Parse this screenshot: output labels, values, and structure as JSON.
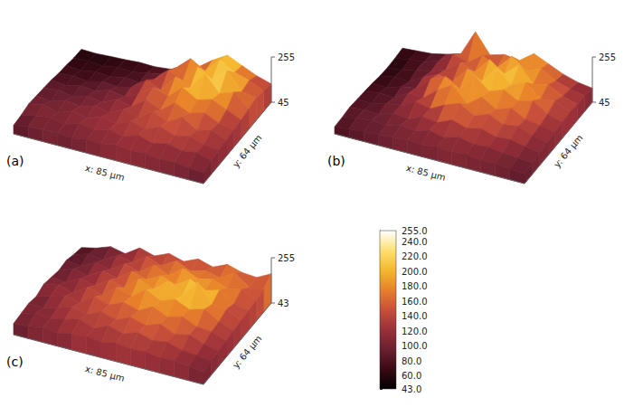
{
  "chart_data": {
    "type": "surface",
    "panels": [
      {
        "label": "(a)",
        "x_label": "x: 85 µm",
        "y_label": "y: 64 µm",
        "zlim": [
          45,
          255
        ],
        "zticks": [
          45,
          255
        ],
        "z": [
          [
            60,
            58,
            62,
            65,
            70,
            68,
            75,
            90,
            120,
            170,
            210,
            180,
            150,
            130
          ],
          [
            62,
            66,
            60,
            72,
            68,
            80,
            95,
            140,
            200,
            160,
            230,
            190,
            170,
            140
          ],
          [
            70,
            64,
            75,
            70,
            85,
            78,
            110,
            170,
            140,
            220,
            180,
            240,
            160,
            150
          ],
          [
            75,
            80,
            72,
            90,
            82,
            100,
            150,
            120,
            200,
            165,
            250,
            175,
            200,
            140
          ],
          [
            85,
            78,
            95,
            88,
            110,
            95,
            130,
            175,
            150,
            210,
            170,
            190,
            160,
            130
          ],
          [
            90,
            100,
            85,
            105,
            95,
            125,
            110,
            160,
            130,
            180,
            150,
            170,
            140,
            125
          ],
          [
            95,
            88,
            110,
            100,
            120,
            105,
            140,
            120,
            165,
            135,
            175,
            130,
            150,
            120
          ],
          [
            100,
            115,
            95,
            120,
            105,
            130,
            115,
            145,
            125,
            155,
            130,
            145,
            125,
            115
          ],
          [
            90,
            105,
            115,
            100,
            125,
            110,
            130,
            115,
            140,
            120,
            135,
            120,
            130,
            110
          ],
          [
            85,
            95,
            100,
            105,
            95,
            110,
            105,
            120,
            110,
            115,
            105,
            110,
            100,
            95
          ]
        ]
      },
      {
        "label": "(b)",
        "x_label": "x: 85 µm",
        "y_label": "y: 64 µm",
        "zlim": [
          45,
          255
        ],
        "zticks": [
          45,
          255
        ],
        "z": [
          [
            65,
            70,
            75,
            90,
            110,
            230,
            140,
            160,
            150,
            200,
            170,
            140,
            120,
            110
          ],
          [
            60,
            72,
            80,
            100,
            150,
            130,
            180,
            140,
            210,
            160,
            190,
            150,
            130,
            115
          ],
          [
            58,
            65,
            85,
            95,
            120,
            170,
            145,
            220,
            170,
            230,
            160,
            175,
            140,
            120
          ],
          [
            62,
            75,
            70,
            110,
            140,
            125,
            200,
            160,
            240,
            180,
            210,
            150,
            160,
            125
          ],
          [
            70,
            68,
            90,
            100,
            160,
            190,
            150,
            230,
            175,
            200,
            165,
            185,
            140,
            120
          ],
          [
            75,
            85,
            80,
            120,
            115,
            170,
            210,
            140,
            190,
            150,
            175,
            140,
            130,
            115
          ],
          [
            80,
            78,
            95,
            105,
            140,
            125,
            160,
            185,
            145,
            170,
            140,
            150,
            125,
            110
          ],
          [
            85,
            90,
            88,
            110,
            100,
            130,
            120,
            150,
            130,
            145,
            125,
            130,
            115,
            105
          ],
          [
            80,
            95,
            100,
            95,
            115,
            105,
            125,
            110,
            130,
            115,
            120,
            110,
            105,
            100
          ],
          [
            78,
            85,
            90,
            95,
            100,
            105,
            100,
            110,
            105,
            110,
            100,
            105,
            95,
            90
          ]
        ]
      },
      {
        "label": "(c)",
        "x_label": "x: 85 µm",
        "y_label": "y: 64 µm",
        "zlim": [
          43,
          255
        ],
        "zticks": [
          43,
          255
        ],
        "z": [
          [
            70,
            85,
            110,
            95,
            140,
            120,
            150,
            130,
            160,
            140,
            170,
            150,
            145,
            180
          ],
          [
            80,
            100,
            90,
            130,
            115,
            160,
            135,
            175,
            145,
            165,
            150,
            190,
            140,
            150
          ],
          [
            95,
            85,
            120,
            105,
            150,
            130,
            180,
            150,
            200,
            170,
            185,
            160,
            175,
            140
          ],
          [
            90,
            115,
            100,
            140,
            125,
            175,
            155,
            190,
            165,
            210,
            175,
            195,
            150,
            135
          ],
          [
            100,
            95,
            130,
            115,
            160,
            140,
            200,
            170,
            225,
            180,
            255,
            170,
            165,
            130
          ],
          [
            110,
            125,
            105,
            150,
            130,
            185,
            160,
            210,
            175,
            200,
            170,
            190,
            150,
            125
          ],
          [
            95,
            115,
            135,
            120,
            165,
            145,
            175,
            155,
            190,
            160,
            180,
            150,
            145,
            120
          ],
          [
            105,
            100,
            120,
            140,
            125,
            155,
            135,
            165,
            145,
            170,
            140,
            155,
            130,
            115
          ],
          [
            100,
            120,
            110,
            125,
            145,
            120,
            150,
            130,
            155,
            135,
            145,
            125,
            120,
            110
          ],
          [
            95,
            100,
            115,
            105,
            120,
            125,
            115,
            130,
            120,
            125,
            115,
            120,
            110,
            100
          ]
        ]
      }
    ],
    "colorbar": {
      "range": [
        43,
        255
      ],
      "ticks": [
        {
          "value": 43,
          "label": "43.0"
        },
        {
          "value": 60,
          "label": "60.0"
        },
        {
          "value": 80,
          "label": "80.0"
        },
        {
          "value": 100,
          "label": "100.0"
        },
        {
          "value": 120,
          "label": "120.0"
        },
        {
          "value": 140,
          "label": "140.0"
        },
        {
          "value": 160,
          "label": "160.0"
        },
        {
          "value": 180,
          "label": "180.0"
        },
        {
          "value": 200,
          "label": "200.0"
        },
        {
          "value": 220,
          "label": "220.0"
        },
        {
          "value": 240,
          "label": "240.0"
        },
        {
          "value": 255,
          "label": "255.0"
        }
      ]
    }
  }
}
